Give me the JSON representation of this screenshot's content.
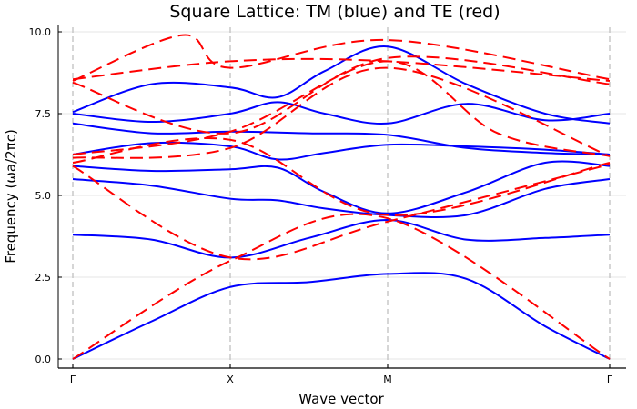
{
  "chart_data": {
    "type": "line",
    "title": "Square Lattice: TM (blue) and TE (red)",
    "xlabel": "Wave vector",
    "ylabel": "Frequency (ωa/2πc)",
    "ylim": [
      -0.25,
      10.25
    ],
    "yticks": [
      0.0,
      2.5,
      5.0,
      7.5,
      10.0
    ],
    "ytick_labels": [
      "0.0",
      "2.5",
      "5.0",
      "7.5",
      "10.0"
    ],
    "xticks": [
      0,
      1,
      2,
      3.414
    ],
    "xtick_labels": [
      "Γ",
      "X",
      "M",
      "Γ"
    ],
    "xlim": [
      -0.08,
      3.5
    ],
    "grid": true,
    "legend": "none",
    "series": [
      {
        "name": "TM",
        "color": "#0000ff",
        "style": "solid",
        "bands": [
          {
            "k": [
              0,
              0.5,
              1,
              1.5,
              2,
              2.5,
              3,
              3.414
            ],
            "f": [
              0,
              1.15,
              2.2,
              2.35,
              2.6,
              2.45,
              1.0,
              0
            ]
          },
          {
            "k": [
              0,
              0.5,
              1,
              1.5,
              2,
              2.5,
              3,
              3.414
            ],
            "f": [
              3.8,
              3.65,
              3.1,
              3.7,
              4.25,
              3.65,
              3.7,
              3.8
            ]
          },
          {
            "k": [
              0,
              0.5,
              1,
              1.3,
              1.6,
              2,
              2.5,
              3,
              3.414
            ],
            "f": [
              5.5,
              5.3,
              4.9,
              4.85,
              4.6,
              4.4,
              4.4,
              5.2,
              5.5
            ]
          },
          {
            "k": [
              0,
              0.5,
              1,
              1.3,
              1.6,
              2,
              2.5,
              3,
              3.414
            ],
            "f": [
              5.9,
              5.75,
              5.8,
              5.85,
              5.1,
              4.45,
              5.1,
              6.0,
              5.9
            ]
          },
          {
            "k": [
              0,
              0.5,
              1,
              1.3,
              1.6,
              2,
              2.5,
              3,
              3.414
            ],
            "f": [
              6.25,
              6.6,
              6.5,
              6.1,
              6.3,
              6.55,
              6.5,
              6.4,
              6.25
            ]
          },
          {
            "k": [
              0,
              0.5,
              1,
              1.5,
              2,
              2.5,
              3,
              3.414
            ],
            "f": [
              7.2,
              6.9,
              6.95,
              6.9,
              6.85,
              6.45,
              6.3,
              6.25
            ]
          },
          {
            "k": [
              0,
              0.5,
              1,
              1.3,
              1.6,
              2,
              2.5,
              3,
              3.414
            ],
            "f": [
              7.5,
              7.25,
              7.5,
              7.85,
              7.5,
              7.2,
              7.8,
              7.3,
              7.5
            ]
          },
          {
            "k": [
              0,
              0.5,
              1,
              1.3,
              1.6,
              2,
              2.5,
              3,
              3.414
            ],
            "f": [
              7.55,
              8.4,
              8.3,
              8.0,
              8.8,
              9.55,
              8.4,
              7.5,
              7.2
            ]
          }
        ]
      },
      {
        "name": "TE",
        "color": "#ff0000",
        "style": "dashed",
        "bands": [
          {
            "k": [
              0,
              1,
              2,
              3.414
            ],
            "f": [
              0,
              3.0,
              4.3,
              0
            ]
          },
          {
            "k": [
              0,
              1,
              2,
              3.414
            ],
            "f": [
              5.9,
              3.1,
              4.2,
              5.95
            ]
          },
          {
            "k": [
              0,
              1,
              2,
              3.414
            ],
            "f": [
              6.0,
              6.7,
              4.4,
              6.0
            ]
          },
          {
            "k": [
              0,
              1,
              2,
              3.414
            ],
            "f": [
              6.15,
              6.45,
              8.9,
              6.2
            ]
          },
          {
            "k": [
              0,
              1,
              2,
              2.7,
              3.414
            ],
            "f": [
              6.25,
              6.95,
              9.1,
              6.9,
              6.2
            ]
          },
          {
            "k": [
              0,
              1,
              2,
              3.414
            ],
            "f": [
              8.45,
              6.9,
              9.2,
              8.4
            ]
          },
          {
            "k": [
              0,
              0.7,
              1,
              2,
              3.414
            ],
            "f": [
              8.5,
              9.9,
              8.9,
              9.75,
              8.55
            ]
          },
          {
            "k": [
              0,
              1,
              2,
              3.414
            ],
            "f": [
              8.55,
              9.1,
              9.1,
              8.5
            ]
          }
        ]
      }
    ]
  }
}
